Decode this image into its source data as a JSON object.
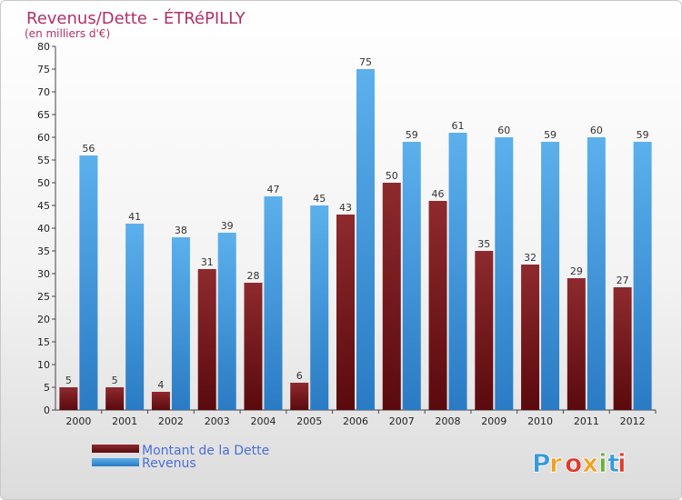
{
  "chart_data": {
    "type": "bar",
    "title": "Revenus/Dette - ÉTRéPILLY",
    "subtitle": "(en milliers d'€)",
    "categories": [
      "2000",
      "2001",
      "2002",
      "2003",
      "2004",
      "2005",
      "2006",
      "2007",
      "2008",
      "2009",
      "2010",
      "2011",
      "2012"
    ],
    "series": [
      {
        "name": "Montant de la Dette",
        "values": [
          5,
          5,
          4,
          31,
          28,
          6,
          43,
          50,
          46,
          35,
          32,
          29,
          27
        ],
        "color": "#7a1e22"
      },
      {
        "name": "Revenus",
        "values": [
          56,
          41,
          38,
          39,
          47,
          45,
          75,
          59,
          61,
          60,
          59,
          60,
          59
        ],
        "color": "#4aa3e6"
      }
    ],
    "ylim": [
      0,
      80
    ],
    "yticks": [
      0,
      5,
      10,
      15,
      20,
      25,
      30,
      35,
      40,
      45,
      50,
      55,
      60,
      65,
      70,
      75,
      80
    ],
    "grid": false,
    "legend_position": "bottom-left"
  },
  "logo": {
    "letters": [
      "P",
      "r",
      "o",
      "x",
      "i",
      "t",
      "i"
    ],
    "colors": [
      "#3a9ad9",
      "#f0a020",
      "#e03a2a",
      "#f0a020",
      "#6ab03a",
      "#3a9ad9",
      "#e03a2a"
    ]
  }
}
